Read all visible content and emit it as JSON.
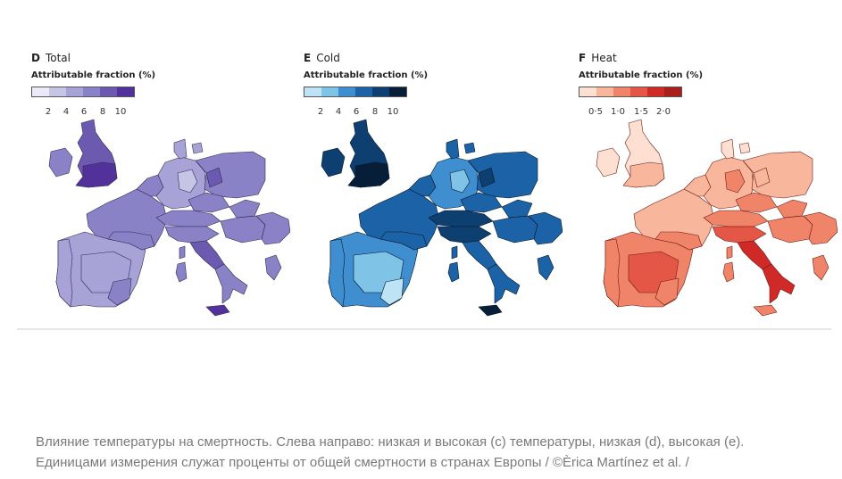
{
  "panels": [
    {
      "letter": "D",
      "title": "Total",
      "legend_title": "Attributable fraction (%)",
      "ticks": [
        "2",
        "4",
        "6",
        "8",
        "10"
      ],
      "colors": {
        "c1": "#eceaf6",
        "c2": "#c7c5e6",
        "c3": "#a7a3d6",
        "c4": "#8a82c6",
        "c5": "#6c59b0",
        "c6": "#52329a",
        "border": "#2f2a55"
      }
    },
    {
      "letter": "E",
      "title": "Cold",
      "legend_title": "Attributable fraction (%)",
      "ticks": [
        "2",
        "4",
        "6",
        "8",
        "10"
      ],
      "colors": {
        "c1": "#bde3f4",
        "c2": "#7fc3e6",
        "c3": "#3f8ed0",
        "c4": "#1b63a6",
        "c5": "#0d3f70",
        "c6": "#061e38",
        "border": "#06162a"
      }
    },
    {
      "letter": "F",
      "title": "Heat",
      "legend_title": "Attributable fraction (%)",
      "ticks": [
        "0·5",
        "1·0",
        "1·5",
        "2·0"
      ],
      "colors": {
        "c1": "#fde0d2",
        "c2": "#f8b79d",
        "c3": "#ef8468",
        "c4": "#e45646",
        "c5": "#cf2a27",
        "c6": "#a81f1c",
        "border": "#6e1a14"
      }
    }
  ],
  "caption": "Влияние температуры на смертность. Слева направо: низкая и высокая (с) температуры, низкая (d), высокая (е). Единицами измерения служат проценты от общей смертности в странах Европы / ©Èrica Martínez et al. /"
}
